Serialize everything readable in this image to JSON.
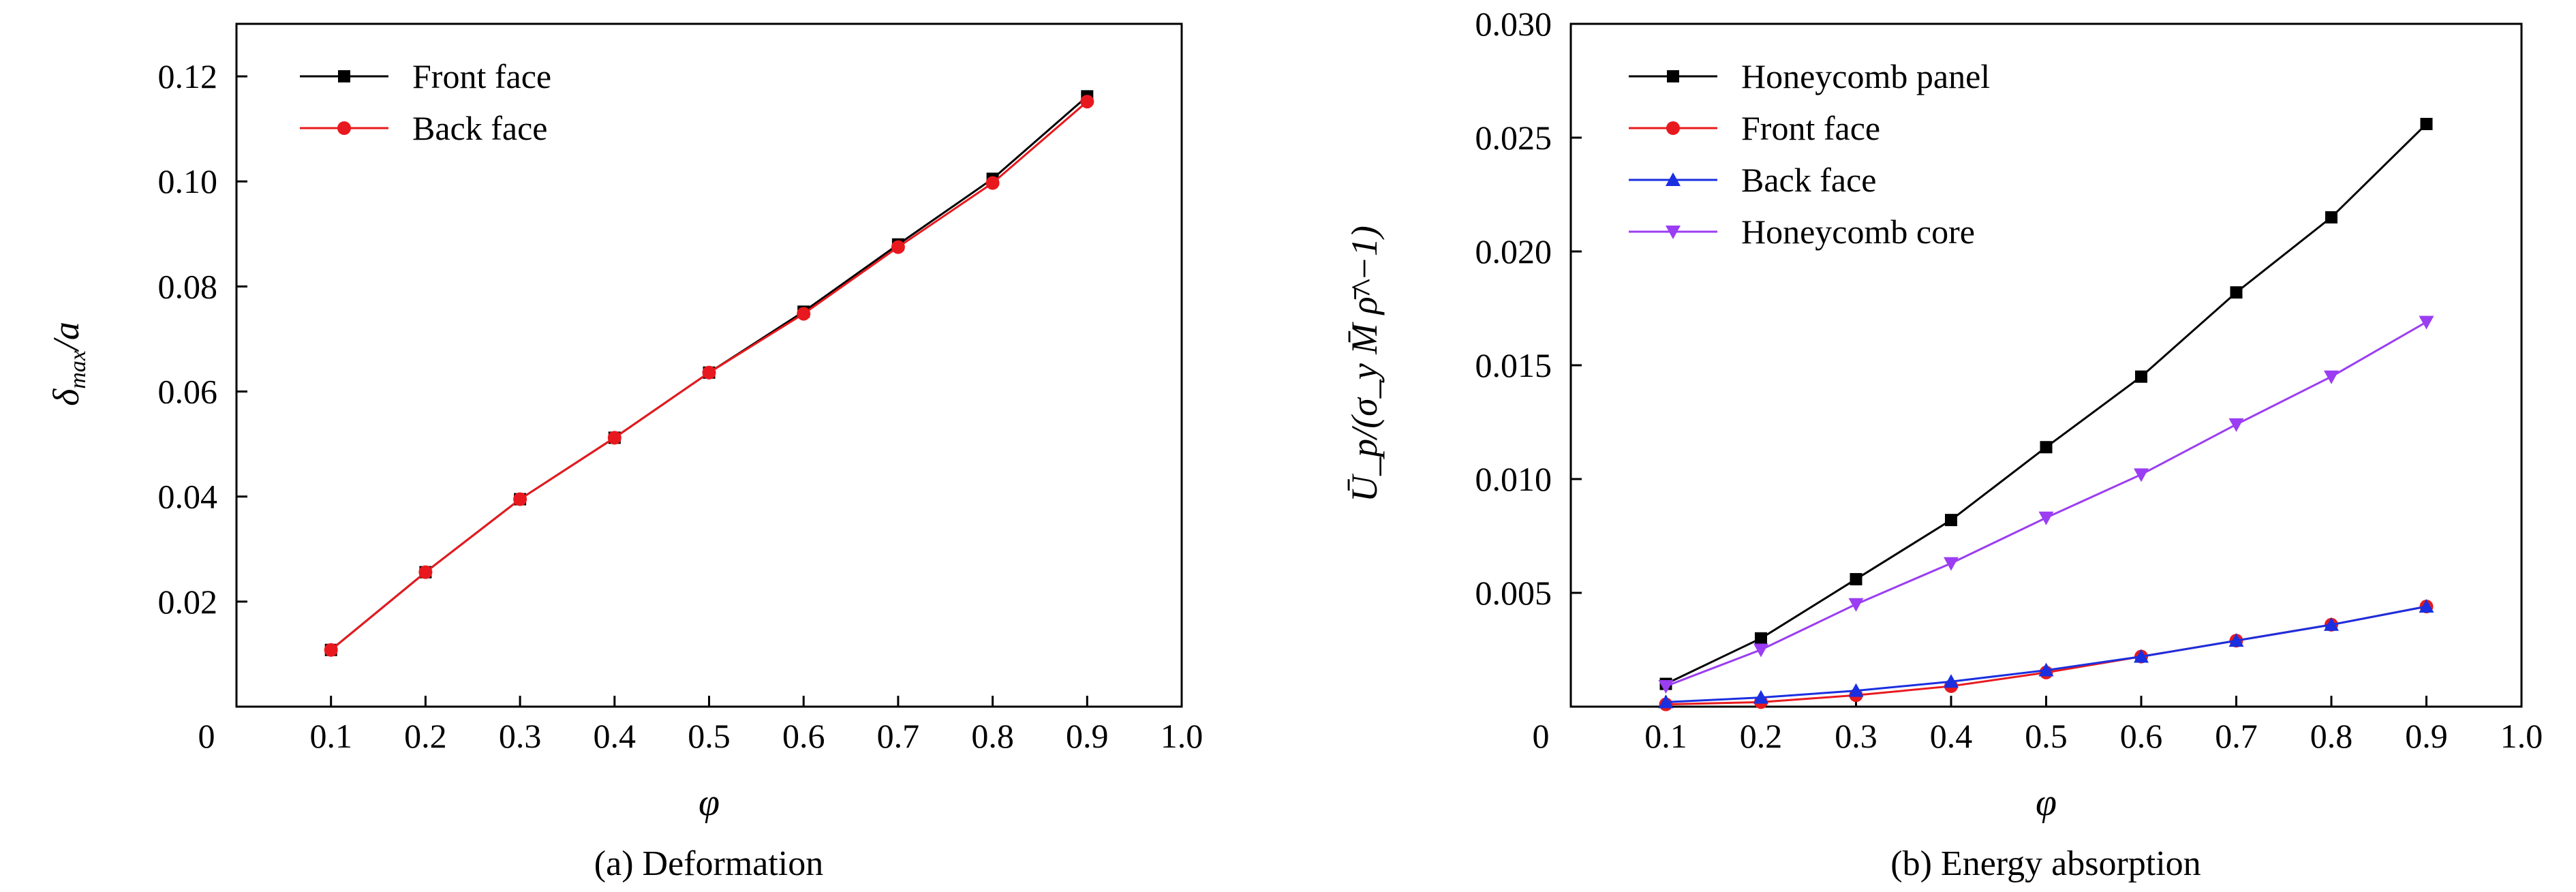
{
  "chart_data": [
    {
      "type": "line",
      "caption": "(a) Deformation",
      "xlabel": "φ",
      "ylabel": {
        "main": "δ",
        "sub": "max",
        "rest": "/a"
      },
      "xlim": [
        0,
        1.0
      ],
      "ylim": [
        0,
        0.13
      ],
      "x_ticks": [
        0.1,
        0.2,
        0.3,
        0.4,
        0.5,
        0.6,
        0.7,
        0.8,
        0.9,
        1.0
      ],
      "x_tick_labels": [
        "0.1",
        "0.2",
        "0.3",
        "0.4",
        "0.5",
        "0.6",
        "0.7",
        "0.8",
        "0.9",
        "1.0"
      ],
      "y_ticks": [
        0.02,
        0.04,
        0.06,
        0.08,
        0.1,
        0.12
      ],
      "y_tick_labels": [
        "0.02",
        "0.04",
        "0.06",
        "0.08",
        "0.10",
        "0.12"
      ],
      "origin_label": "0",
      "grid": false,
      "legend_position": "top-left",
      "x": [
        0.1,
        0.2,
        0.3,
        0.4,
        0.5,
        0.6,
        0.7,
        0.8,
        0.9
      ],
      "series": [
        {
          "name": "Front face",
          "color": "#000000",
          "marker": "square",
          "values": [
            0.0108,
            0.0256,
            0.0395,
            0.0512,
            0.0636,
            0.0752,
            0.088,
            0.1005,
            0.1162
          ]
        },
        {
          "name": "Back face",
          "color": "#e8191e",
          "marker": "circle",
          "values": [
            0.0108,
            0.0256,
            0.0395,
            0.0512,
            0.0636,
            0.0748,
            0.0875,
            0.0997,
            0.1152
          ]
        }
      ]
    },
    {
      "type": "line",
      "caption": "(b) Energy absorption",
      "xlabel": "φ",
      "ylabel": {
        "text": "Ū_p/(σ_y M̄ ρ̄^−1)"
      },
      "xlim": [
        0,
        1.0
      ],
      "ylim": [
        0,
        0.03
      ],
      "x_ticks": [
        0.1,
        0.2,
        0.3,
        0.4,
        0.5,
        0.6,
        0.7,
        0.8,
        0.9,
        1.0
      ],
      "x_tick_labels": [
        "0.1",
        "0.2",
        "0.3",
        "0.4",
        "0.5",
        "0.6",
        "0.7",
        "0.8",
        "0.9",
        "1.0"
      ],
      "y_ticks": [
        0.005,
        0.01,
        0.015,
        0.02,
        0.025,
        0.03
      ],
      "y_tick_labels": [
        "0.005",
        "0.010",
        "0.015",
        "0.020",
        "0.025",
        "0.030"
      ],
      "origin_label": "0",
      "grid": false,
      "legend_position": "top-left",
      "x": [
        0.1,
        0.2,
        0.3,
        0.4,
        0.5,
        0.6,
        0.7,
        0.8,
        0.9
      ],
      "series": [
        {
          "name": "Honeycomb panel",
          "color": "#000000",
          "marker": "square",
          "values": [
            0.001,
            0.003,
            0.0056,
            0.0082,
            0.0114,
            0.0145,
            0.0182,
            0.0215,
            0.0256
          ]
        },
        {
          "name": "Front face",
          "color": "#e8191e",
          "marker": "circle",
          "values": [
            0.0001,
            0.0002,
            0.0005,
            0.0009,
            0.0015,
            0.0022,
            0.0029,
            0.0036,
            0.0044
          ]
        },
        {
          "name": "Back face",
          "color": "#1a2fe0",
          "marker": "triangle-up",
          "values": [
            0.0002,
            0.0004,
            0.0007,
            0.0011,
            0.0016,
            0.0022,
            0.0029,
            0.0036,
            0.0044
          ]
        },
        {
          "name": "Honeycomb core",
          "color": "#9b3df2",
          "marker": "triangle-down",
          "values": [
            0.0009,
            0.0025,
            0.0045,
            0.0063,
            0.0083,
            0.0102,
            0.0124,
            0.0145,
            0.0169
          ]
        }
      ]
    }
  ]
}
